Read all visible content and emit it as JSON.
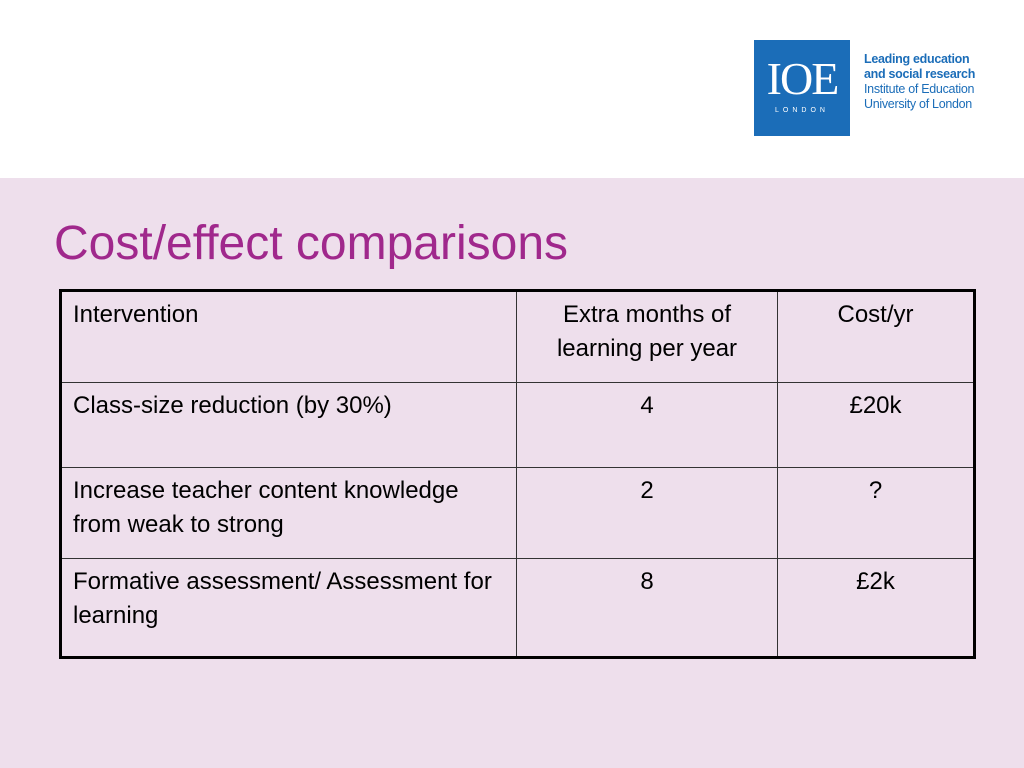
{
  "logo": {
    "mark": "IOE",
    "sub": "LONDON",
    "line1": "Leading education",
    "line2": "and social research",
    "line3": "Institute of Education",
    "line4": "University of London",
    "brand_color": "#1b6db8"
  },
  "slide": {
    "title": "Cost/effect comparisons",
    "title_color": "#a0288c",
    "background_color": "#eedfec"
  },
  "table": {
    "headers": [
      "Intervention",
      "Extra months of learning per year",
      "Cost/yr"
    ],
    "rows": [
      [
        "Class-size reduction (by 30%)",
        "4",
        "£20k"
      ],
      [
        "Increase teacher content knowledge from weak to strong",
        "2",
        "?"
      ],
      [
        "Formative assessment/ Assessment for learning",
        "8",
        "£2k"
      ]
    ]
  }
}
